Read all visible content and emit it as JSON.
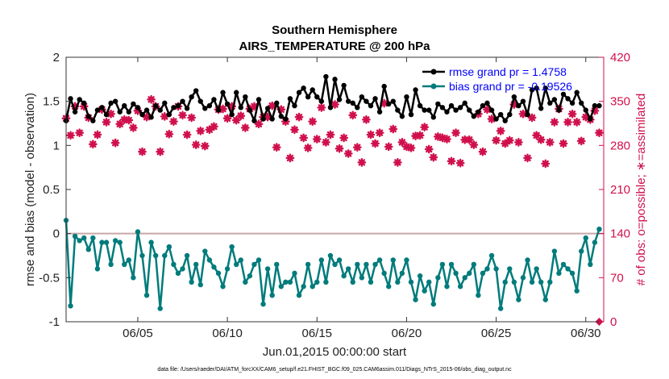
{
  "chart_data": {
    "type": "line",
    "title": "Southern Hemisphere",
    "subtitle": "AIRS_TEMPERATURE @ 200 hPa",
    "xlabel": "Jun.01,2015 00:00:00 start",
    "ylabel": "rmse and bias (model - observation)",
    "ylabel_right": "# of obs: o=possible; ∗=assimilated",
    "xlim": [
      1,
      31
    ],
    "ylim": [
      -1,
      2
    ],
    "ylim_right": [
      0,
      420
    ],
    "x_ticks": [
      5,
      10,
      15,
      20,
      25,
      30
    ],
    "x_tick_labels": [
      "06/05",
      "06/10",
      "06/15",
      "06/20",
      "06/25",
      "06/30"
    ],
    "y_ticks": [
      -1,
      -0.5,
      0,
      0.5,
      1,
      1.5,
      2
    ],
    "y_tick_labels": [
      "-1",
      "-0.5",
      "0",
      "0.5",
      "1",
      "1.5",
      "2"
    ],
    "y_ticks_right": [
      0,
      70,
      140,
      210,
      280,
      350,
      420
    ],
    "y_tick_labels_right": [
      "0",
      "70",
      "140",
      "210",
      "280",
      "350",
      "420"
    ],
    "zero_line": 0,
    "x": [
      1.0,
      1.25,
      1.5,
      1.75,
      2.0,
      2.25,
      2.5,
      2.75,
      3.0,
      3.25,
      3.5,
      3.75,
      4.0,
      4.25,
      4.5,
      4.75,
      5.0,
      5.25,
      5.5,
      5.75,
      6.0,
      6.25,
      6.5,
      6.75,
      7.0,
      7.25,
      7.5,
      7.75,
      8.0,
      8.25,
      8.5,
      8.75,
      9.0,
      9.25,
      9.5,
      9.75,
      10.0,
      10.25,
      10.5,
      10.75,
      11.0,
      11.25,
      11.5,
      11.75,
      12.0,
      12.25,
      12.5,
      12.75,
      13.0,
      13.25,
      13.5,
      13.75,
      14.0,
      14.25,
      14.5,
      14.75,
      15.0,
      15.25,
      15.5,
      15.75,
      16.0,
      16.25,
      16.5,
      16.75,
      17.0,
      17.25,
      17.5,
      17.75,
      18.0,
      18.25,
      18.5,
      18.75,
      19.0,
      19.25,
      19.5,
      19.75,
      20.0,
      20.25,
      20.5,
      20.75,
      21.0,
      21.25,
      21.5,
      21.75,
      22.0,
      22.25,
      22.5,
      22.75,
      23.0,
      23.25,
      23.5,
      23.75,
      24.0,
      24.25,
      24.5,
      24.75,
      25.0,
      25.25,
      25.5,
      25.75,
      26.0,
      26.25,
      26.5,
      26.75,
      27.0,
      27.25,
      27.5,
      27.75,
      28.0,
      28.25,
      28.5,
      28.75,
      29.0,
      29.25,
      29.5,
      29.75,
      30.0,
      30.25,
      30.5,
      30.75
    ],
    "series": [
      {
        "name": "rmse grand pr = 1.4758",
        "color": "#000000",
        "axis": "left",
        "marker": "dot",
        "values": [
          1.28,
          1.53,
          1.38,
          1.52,
          1.48,
          1.33,
          1.28,
          1.4,
          1.43,
          1.35,
          1.48,
          1.5,
          1.38,
          1.45,
          1.38,
          1.47,
          1.43,
          1.35,
          1.4,
          1.32,
          1.45,
          1.4,
          1.48,
          1.35,
          1.43,
          1.45,
          1.5,
          1.42,
          1.55,
          1.62,
          1.5,
          1.42,
          1.45,
          1.52,
          1.4,
          1.6,
          1.47,
          1.35,
          1.6,
          1.43,
          1.55,
          1.4,
          1.28,
          1.52,
          1.3,
          1.42,
          1.3,
          1.48,
          1.33,
          1.3,
          1.53,
          1.45,
          1.6,
          1.65,
          1.55,
          1.63,
          1.55,
          1.5,
          1.78,
          1.43,
          1.75,
          1.52,
          1.68,
          1.5,
          1.48,
          1.43,
          1.55,
          1.5,
          1.45,
          1.53,
          1.38,
          1.67,
          1.47,
          1.5,
          1.4,
          1.33,
          1.55,
          1.35,
          1.63,
          1.45,
          1.4,
          1.4,
          1.32,
          1.47,
          1.43,
          1.38,
          1.45,
          1.4,
          1.43,
          1.48,
          1.4,
          1.33,
          1.38,
          1.45,
          1.48,
          1.4,
          1.3,
          1.35,
          1.28,
          1.35,
          1.55,
          1.45,
          1.5,
          1.35,
          1.63,
          1.65,
          1.42,
          1.65,
          1.48,
          1.52,
          1.4,
          1.58,
          1.53,
          1.48,
          1.6,
          1.48,
          1.4,
          1.3,
          1.45,
          1.45
        ],
        "label": "rmse grand pr = 1.4758"
      },
      {
        "name": "bias grand pr = -0.19526",
        "color": "#007b7b",
        "axis": "left",
        "marker": "dot",
        "values": [
          0.15,
          -0.82,
          -0.03,
          -0.08,
          -0.05,
          -0.18,
          -0.05,
          -0.4,
          -0.1,
          -0.1,
          -0.35,
          -0.08,
          -0.1,
          -0.35,
          -0.3,
          -0.5,
          0.02,
          -0.25,
          -0.7,
          -0.1,
          -0.25,
          -0.85,
          -0.25,
          -0.15,
          -0.35,
          -0.45,
          -0.4,
          -0.25,
          -0.55,
          -0.35,
          -0.58,
          -0.2,
          -0.3,
          -0.38,
          -0.45,
          -0.6,
          -0.4,
          -0.15,
          -0.35,
          -0.3,
          -0.55,
          -0.48,
          -0.35,
          -0.3,
          -0.8,
          -0.4,
          -0.7,
          -0.35,
          -0.6,
          -0.55,
          -0.55,
          -0.45,
          -0.7,
          -0.6,
          -0.35,
          -0.6,
          -0.55,
          -0.3,
          -0.55,
          -0.25,
          -0.35,
          -0.3,
          -0.48,
          -0.4,
          -0.55,
          -0.35,
          -0.5,
          -0.35,
          -0.55,
          -0.35,
          -0.3,
          -0.45,
          -0.6,
          -0.3,
          -0.55,
          -0.45,
          -0.3,
          -0.55,
          -0.75,
          -0.48,
          -0.65,
          -0.55,
          -0.8,
          -0.5,
          -0.35,
          -0.6,
          -0.35,
          -0.45,
          -0.6,
          -0.5,
          -0.45,
          -0.35,
          -0.7,
          -0.45,
          -0.4,
          -0.25,
          -0.4,
          -0.85,
          -0.55,
          -0.4,
          -0.55,
          -0.75,
          -0.5,
          -0.3,
          -0.55,
          -0.4,
          -0.55,
          -0.75,
          -0.55,
          -0.2,
          -0.45,
          -0.35,
          -0.4,
          -0.45,
          -0.65,
          -0.2,
          -0.05,
          -0.35,
          -0.1,
          0.05
        ],
        "label": "bias grand pr = -0.19526"
      },
      {
        "name": "# of obs assimilated",
        "color": "#d0104c",
        "axis": "right",
        "marker": "star",
        "values": [
          323,
          296,
          342,
          300,
          342,
          324,
          282,
          297,
          337,
          317,
          330,
          284,
          314,
          321,
          320,
          308,
          335,
          270,
          325,
          353,
          342,
          270,
          326,
          298,
          318,
          342,
          328,
          297,
          324,
          281,
          303,
          279,
          305,
          310,
          337,
          338,
          323,
          342,
          320,
          327,
          308,
          338,
          342,
          314,
          325,
          325,
          343,
          277,
          337,
          318,
          260,
          305,
          325,
          292,
          276,
          318,
          290,
          340,
          285,
          297,
          345,
          275,
          292,
          267,
          328,
          277,
          253,
          321,
          297,
          283,
          300,
          347,
          278,
          306,
          253,
          285,
          278,
          276,
          295,
          296,
          309,
          274,
          261,
          294,
          292,
          290,
          255,
          300,
          252,
          289,
          289,
          281,
          330,
          270,
          337,
          322,
          288,
          303,
          283,
          288,
          345,
          285,
          330,
          260,
          324,
          296,
          289,
          251,
          285,
          317,
          338,
          283,
          317,
          330,
          317,
          287,
          325,
          321,
          335,
          300
        ]
      }
    ],
    "legend": {
      "placement": "top-right",
      "entries": [
        "rmse grand pr = 1.4758",
        "bias grand pr = -0.19526"
      ]
    },
    "footnote": "data file: /Users/raeder/DAI/ATM_forcXX/CAM6_setup/f.e21.FHIST_BGC.f09_025.CAM6assim.011/Diags_NTrS_2015-06/obs_diag_output.nc",
    "extra_points": [
      {
        "x": 30.75,
        "y_right": 0,
        "marker": "diamond",
        "color": "#d0104c"
      }
    ]
  }
}
